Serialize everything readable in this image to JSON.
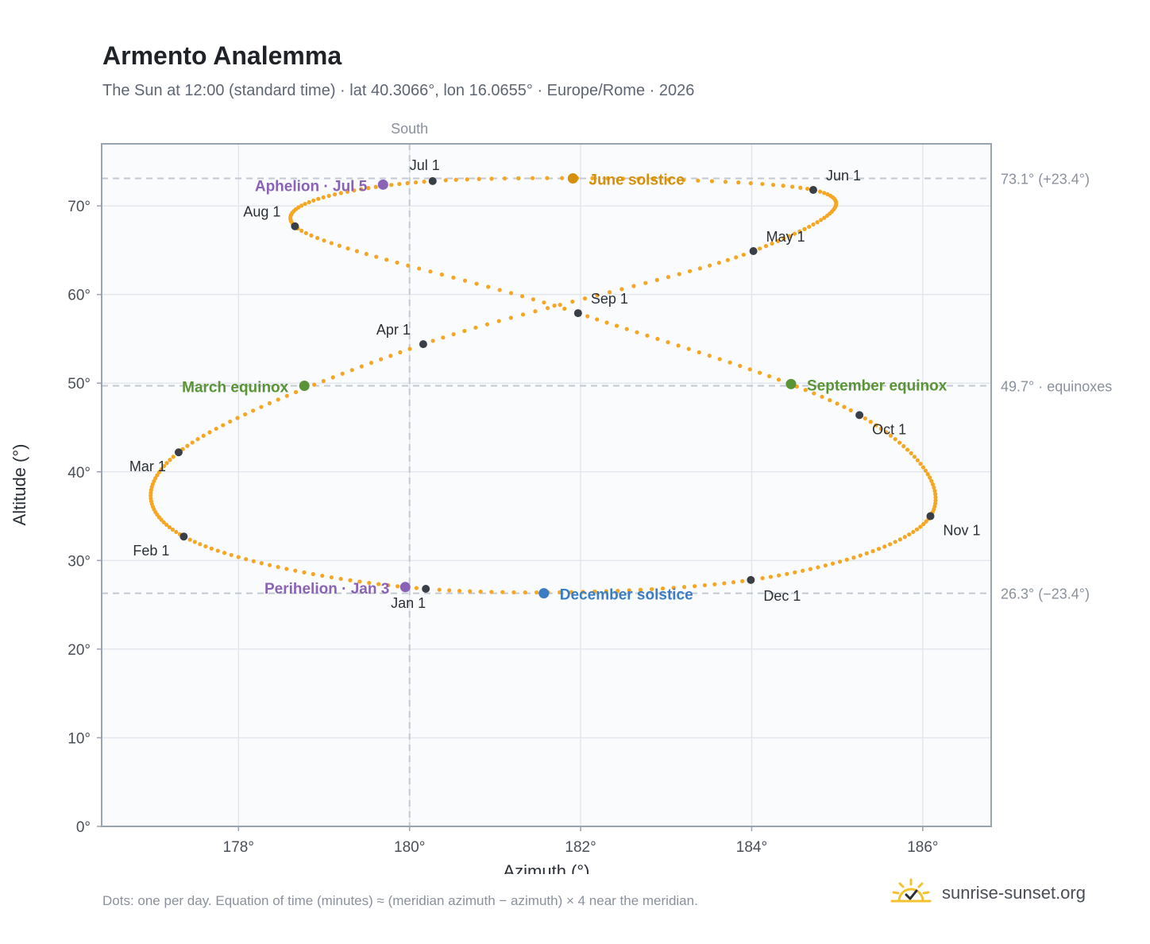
{
  "header": {
    "title": "Armento Analemma",
    "subtitle": "The Sun at 12:00 (standard time) · lat 40.3066°, lon 16.0655° · Europe/Rome · 2026"
  },
  "footer": {
    "note": "Dots: one per day. Equation of time (minutes) ≈ (meridian azimuth − azimuth) × 4 near the meridian.",
    "brand": "sunrise-sunset.org"
  },
  "colors": {
    "curve": "#f5a623",
    "month_marker": "#3a3f47",
    "solstice_june": "#d4900a",
    "solstice_december": "#3b7dc4",
    "equinox": "#5a9436",
    "apsis": "#8a63b8",
    "grid": "#e3e7ed",
    "reference_line": "#c3c9d2",
    "frame": "#9aa3b0",
    "plot_bg": "#f9fbfd",
    "brand_sun": "#f2c230"
  },
  "icons": {
    "brand": "sun-check-icon"
  },
  "chart_data": {
    "type": "scatter",
    "xlabel": "Azimuth (°)",
    "ylabel": "Altitude (°)",
    "xlim": [
      176.4,
      186.8
    ],
    "ylim": [
      0,
      77
    ],
    "xticks": [
      178,
      180,
      182,
      184,
      186
    ],
    "yticks": [
      0,
      10,
      20,
      30,
      40,
      50,
      60,
      70
    ],
    "tick_suffix": "°",
    "grid": true,
    "meridian": {
      "azimuth": 180,
      "label": "South"
    },
    "reference_lines": [
      {
        "altitude": 73.1,
        "label": "73.1° (+23.4°)"
      },
      {
        "altitude": 49.7,
        "label": "49.7° · equinoxes"
      },
      {
        "altitude": 26.3,
        "label": "26.3° (−23.4°)"
      }
    ],
    "analemma": {
      "mean_altitude": 49.7,
      "declination_amplitude": 23.4,
      "points_per_year": 365
    },
    "month_markers": [
      {
        "label": "Jan 1",
        "az": 180.19,
        "alt": 26.8
      },
      {
        "label": "Feb 1",
        "az": 177.36,
        "alt": 32.7
      },
      {
        "label": "Mar 1",
        "az": 177.3,
        "alt": 42.2
      },
      {
        "label": "Apr 1",
        "az": 180.16,
        "alt": 54.4
      },
      {
        "label": "May 1",
        "az": 184.02,
        "alt": 64.9
      },
      {
        "label": "Jun 1",
        "az": 184.72,
        "alt": 71.8
      },
      {
        "label": "Jul 1",
        "az": 180.27,
        "alt": 72.8
      },
      {
        "label": "Aug 1",
        "az": 178.66,
        "alt": 67.7
      },
      {
        "label": "Sep 1",
        "az": 181.97,
        "alt": 57.9
      },
      {
        "label": "Oct 1",
        "az": 185.26,
        "alt": 46.4
      },
      {
        "label": "Nov 1",
        "az": 186.09,
        "alt": 35.0
      },
      {
        "label": "Dec 1",
        "az": 183.99,
        "alt": 27.8
      }
    ],
    "events": [
      {
        "label": "June solstice",
        "az": 181.91,
        "alt": 73.1,
        "kind": "solstice_june"
      },
      {
        "label": "December solstice",
        "az": 181.57,
        "alt": 26.3,
        "kind": "solstice_december"
      },
      {
        "label": "March equinox",
        "az": 178.77,
        "alt": 49.7,
        "kind": "equinox"
      },
      {
        "label": "September equinox",
        "az": 184.46,
        "alt": 49.9,
        "kind": "equinox"
      },
      {
        "label": "Aphelion · Jul 5",
        "az": 179.69,
        "alt": 72.4,
        "kind": "apsis"
      },
      {
        "label": "Perihelion · Jan 3",
        "az": 179.95,
        "alt": 27.0,
        "kind": "apsis"
      }
    ]
  }
}
